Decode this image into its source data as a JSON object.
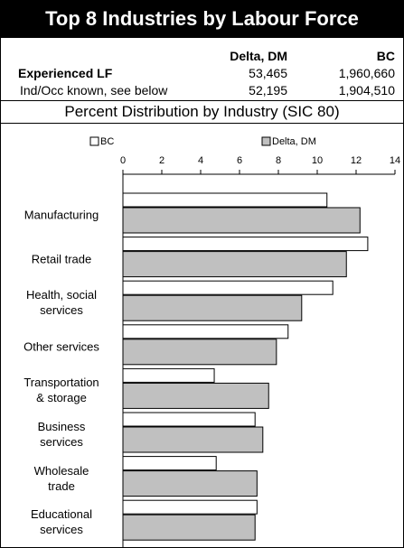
{
  "title": "Top 8 Industries by Labour Force",
  "table": {
    "columns": [
      "Delta, DM",
      "BC"
    ],
    "rows": [
      [
        "Experienced LF",
        "53,465",
        "1,960,660"
      ],
      [
        "Ind/Occ known, see below",
        "52,195",
        "1,904,510"
      ]
    ]
  },
  "chart_data": {
    "type": "bar",
    "orientation": "horizontal",
    "title": "Percent Distribution by Industry (SIC 80)",
    "categories": [
      "Manufacturing",
      "Retail trade",
      "Health, social\nservices",
      "Other services",
      "Transportation\n& storage",
      "Business\nservices",
      "Wholesale\ntrade",
      "Educational\nservices"
    ],
    "series": [
      {
        "name": "BC",
        "color": "#ffffff",
        "values": [
          10.5,
          12.6,
          10.8,
          8.5,
          4.7,
          6.8,
          4.8,
          6.9
        ]
      },
      {
        "name": "Delta, DM",
        "color": "#c0c0c0",
        "values": [
          12.2,
          11.5,
          9.2,
          7.9,
          7.5,
          7.2,
          6.9,
          6.8
        ]
      }
    ],
    "xlim": [
      0,
      14
    ],
    "xticks": [
      0,
      2,
      4,
      6,
      8,
      10,
      12,
      14
    ]
  }
}
